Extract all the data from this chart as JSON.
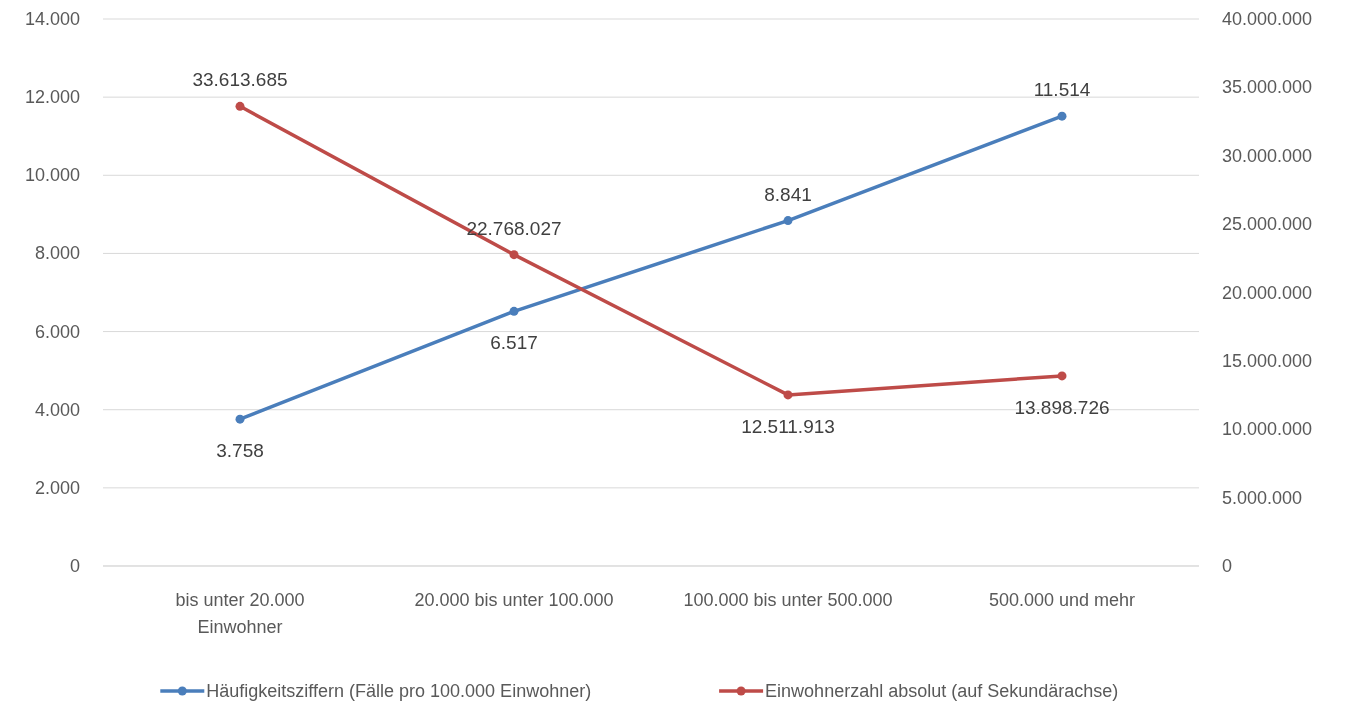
{
  "chart_data": {
    "type": "line",
    "categories": [
      "bis unter 20.000 Einwohner",
      "20.000 bis unter 100.000",
      "100.000 bis unter 500.000",
      "500.000 und mehr"
    ],
    "series": [
      {
        "name": "Häufigkeitsziffern (Fälle pro 100.000 Einwohner)",
        "color": "#4a7ebb",
        "values": [
          3758,
          6517,
          8841,
          11514
        ],
        "value_labels": [
          "3.758",
          "6.517",
          "8.841",
          "11.514"
        ]
      },
      {
        "name": "Einwohnerzahl absolut (auf Sekundärachse)",
        "color": "#be4b48",
        "axis": "y2",
        "values": [
          33613685,
          22768027,
          12511913,
          13898726
        ],
        "value_labels": [
          "33.613.685",
          "22.768.027",
          "12.511.913",
          "13.898.726"
        ]
      }
    ],
    "ylim": [
      0,
      14000
    ],
    "yticks": [
      {
        "value": 0,
        "label": "0"
      },
      {
        "value": 2000,
        "label": "2.000"
      },
      {
        "value": 4000,
        "label": "4.000"
      },
      {
        "value": 6000,
        "label": "6.000"
      },
      {
        "value": 8000,
        "label": "8.000"
      },
      {
        "value": 10000,
        "label": "10.000"
      },
      {
        "value": 12000,
        "label": "12.000"
      },
      {
        "value": 14000,
        "label": "14.000"
      }
    ],
    "y2lim": [
      0,
      40000000
    ],
    "y2ticks": [
      {
        "value": 0,
        "label": "0"
      },
      {
        "value": 5000000,
        "label": "5.000.000"
      },
      {
        "value": 10000000,
        "label": "10.000.000"
      },
      {
        "value": 15000000,
        "label": "15.000.000"
      },
      {
        "value": 20000000,
        "label": "20.000.000"
      },
      {
        "value": 25000000,
        "label": "25.000.000"
      },
      {
        "value": 30000000,
        "label": "30.000.000"
      },
      {
        "value": 35000000,
        "label": "35.000.000"
      },
      {
        "value": 40000000,
        "label": "40.000.000"
      }
    ],
    "grid": "y",
    "legend": "bottom",
    "marker": "circle",
    "line_style": "solid"
  }
}
